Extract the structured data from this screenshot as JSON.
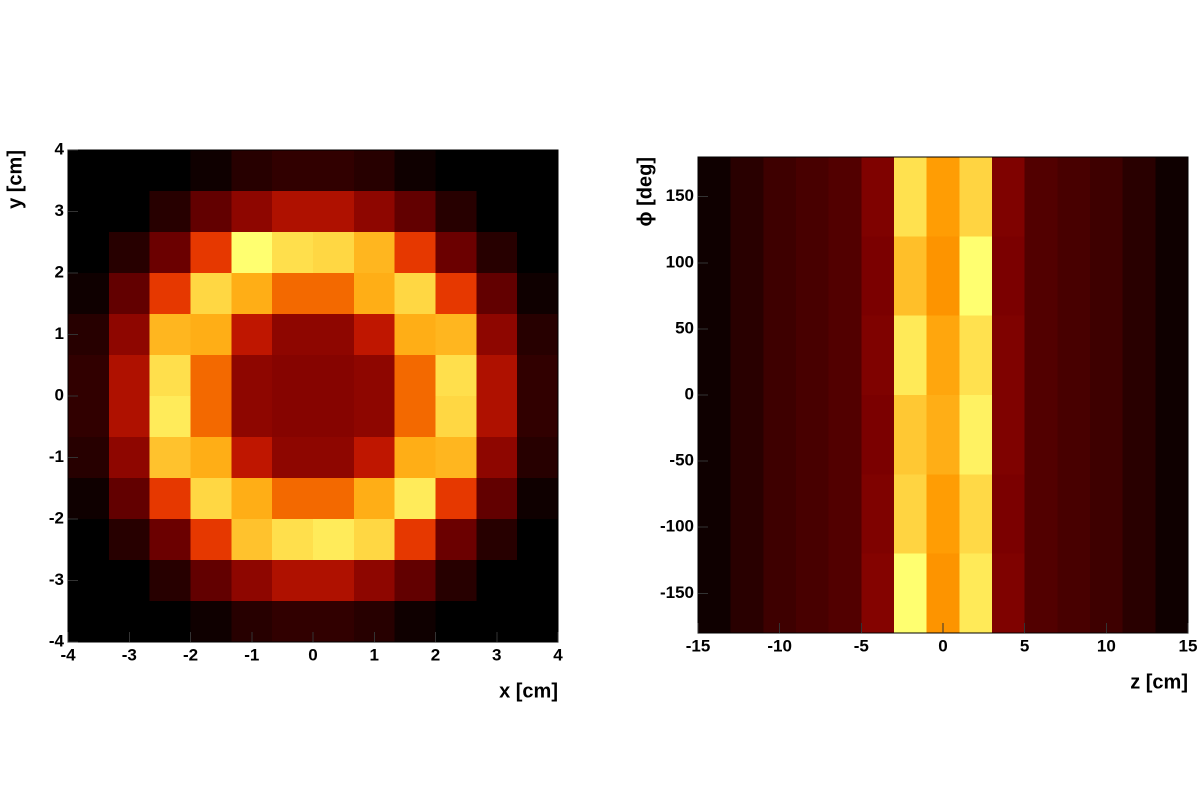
{
  "chart_data": [
    {
      "type": "heatmap",
      "xlabel": "x [cm]",
      "ylabel": "y [cm]",
      "xlim": [
        -4,
        4
      ],
      "ylim": [
        -4,
        4
      ],
      "xticks": [
        -4,
        -3,
        -2,
        -1,
        0,
        1,
        2,
        3,
        4
      ],
      "yticks": [
        -4,
        -3,
        -2,
        -1,
        0,
        1,
        2,
        3,
        4
      ],
      "colormap": [
        "#000000",
        "#7a0000",
        "#e02000",
        "#ff9a00",
        "#ffff70"
      ],
      "values": [
        [
          0,
          0,
          0,
          3,
          8,
          10,
          10,
          8,
          3,
          0,
          0,
          0
        ],
        [
          0,
          0,
          8,
          20,
          30,
          38,
          38,
          30,
          20,
          8,
          0,
          0
        ],
        [
          0,
          8,
          22,
          55,
          100,
          92,
          90,
          82,
          55,
          22,
          8,
          0
        ],
        [
          3,
          20,
          55,
          90,
          80,
          65,
          65,
          80,
          90,
          55,
          20,
          3
        ],
        [
          8,
          30,
          82,
          80,
          42,
          30,
          30,
          42,
          80,
          82,
          30,
          8
        ],
        [
          10,
          38,
          92,
          65,
          30,
          28,
          28,
          30,
          65,
          92,
          38,
          10
        ],
        [
          10,
          38,
          95,
          65,
          30,
          28,
          28,
          30,
          65,
          90,
          38,
          10
        ],
        [
          8,
          30,
          85,
          80,
          42,
          30,
          30,
          42,
          80,
          82,
          30,
          8
        ],
        [
          3,
          20,
          55,
          90,
          80,
          65,
          65,
          80,
          95,
          55,
          20,
          3
        ],
        [
          0,
          8,
          22,
          55,
          85,
          92,
          95,
          90,
          55,
          22,
          8,
          0
        ],
        [
          0,
          0,
          8,
          20,
          30,
          38,
          38,
          30,
          20,
          8,
          0,
          0
        ],
        [
          0,
          0,
          0,
          3,
          8,
          10,
          10,
          8,
          3,
          0,
          0,
          0
        ]
      ]
    },
    {
      "type": "heatmap",
      "xlabel": "z [cm]",
      "ylabel": "ϕ [deg]",
      "xlim": [
        -15,
        15
      ],
      "ylim": [
        -180,
        180
      ],
      "xticks": [
        -15,
        -10,
        -5,
        0,
        5,
        10,
        15
      ],
      "yticks": [
        -150,
        -100,
        -50,
        0,
        50,
        100,
        150
      ],
      "colormap": [
        "#000000",
        "#7a0000",
        "#e02000",
        "#ff9a00",
        "#ffff70"
      ],
      "values": [
        [
          3,
          8,
          12,
          14,
          16,
          25,
          88,
          72,
          85,
          25,
          16,
          14,
          12,
          8,
          3
        ],
        [
          3,
          8,
          12,
          14,
          16,
          24,
          80,
          70,
          95,
          24,
          16,
          14,
          12,
          8,
          3
        ],
        [
          3,
          8,
          12,
          14,
          16,
          25,
          90,
          74,
          88,
          25,
          16,
          14,
          12,
          8,
          3
        ],
        [
          3,
          8,
          12,
          14,
          16,
          24,
          82,
          76,
          92,
          25,
          16,
          14,
          12,
          8,
          3
        ],
        [
          3,
          8,
          12,
          14,
          16,
          25,
          85,
          72,
          86,
          24,
          16,
          14,
          12,
          8,
          3
        ],
        [
          3,
          8,
          12,
          14,
          16,
          26,
          95,
          70,
          90,
          25,
          16,
          14,
          12,
          8,
          3
        ]
      ]
    }
  ]
}
